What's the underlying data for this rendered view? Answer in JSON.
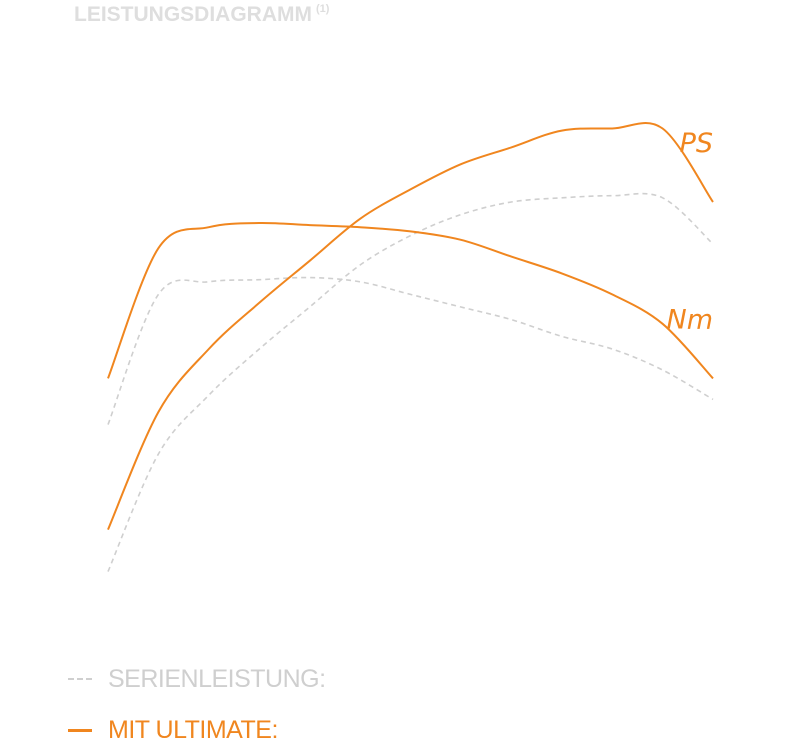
{
  "title": "LEISTUNGSDIAGRAMM",
  "title_note": "(1)",
  "colors": {
    "ultimate": "#f0861f",
    "stock": "#cfcfcf",
    "title": "#dedede"
  },
  "legend": {
    "stock_label": "SERIENLEISTUNG:",
    "ultimate_label": "MIT ULTIMATE:"
  },
  "chart_data": {
    "type": "line",
    "title": "LEISTUNGSDIAGRAMM",
    "xlabel": "",
    "ylabel": "",
    "grid": false,
    "x": [
      0,
      1,
      2,
      3,
      4,
      5,
      6,
      7,
      8,
      9,
      10,
      11,
      12
    ],
    "curve_labels": {
      "power": "PS",
      "torque": "Nm"
    },
    "series": [
      {
        "key": "power_ultimate",
        "curve": "power",
        "style": "solid",
        "values": [
          12,
          40,
          55,
          66,
          76,
          86,
          93,
          99,
          103,
          107,
          107.5,
          107.5,
          90
        ]
      },
      {
        "key": "torque_ultimate",
        "curve": "torque",
        "style": "solid",
        "values": [
          48,
          79,
          84,
          85,
          84.5,
          84,
          83,
          81,
          77,
          73,
          68,
          61,
          48
        ]
      },
      {
        "key": "power_stock",
        "curve": "power",
        "style": "dashed",
        "values": [
          2,
          30,
          44,
          55,
          65,
          75,
          82,
          87,
          90,
          91,
          91.5,
          91,
          80
        ]
      },
      {
        "key": "torque_stock",
        "curve": "torque",
        "style": "dashed",
        "values": [
          37,
          68,
          71,
          71.5,
          72,
          71,
          68,
          65,
          62,
          58,
          55,
          50,
          43
        ]
      }
    ]
  }
}
